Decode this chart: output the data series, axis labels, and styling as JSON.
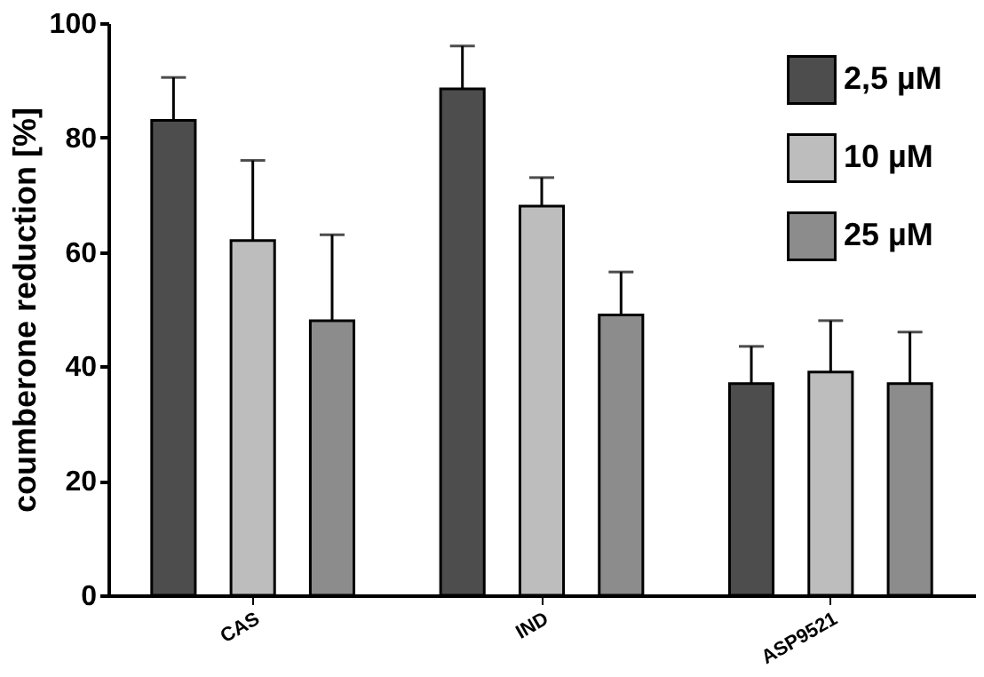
{
  "chart_data": {
    "type": "bar",
    "ylabel": "coumberone reduction [%]",
    "categories": [
      "CAS",
      "IND",
      "ASP9521"
    ],
    "series": [
      {
        "name": "2,5 µM",
        "color": "#4d4d4d",
        "values": [
          83,
          88.5,
          37
        ],
        "errors": [
          [
            83,
            90.5
          ],
          [
            88.5,
            96
          ],
          [
            37,
            43.5
          ]
        ]
      },
      {
        "name": "10 µM",
        "color": "#bdbdbd",
        "values": [
          62,
          68,
          39
        ],
        "errors": [
          [
            62,
            76
          ],
          [
            68,
            73
          ],
          [
            39,
            48
          ]
        ]
      },
      {
        "name": "25 µM",
        "color": "#8c8c8c",
        "values": [
          48,
          49,
          37
        ],
        "errors": [
          [
            48,
            63
          ],
          [
            49,
            56.5
          ],
          [
            37,
            46
          ]
        ]
      }
    ],
    "ylim": [
      0,
      100
    ],
    "yticks": [
      0,
      20,
      40,
      60,
      80,
      100
    ],
    "grid": false,
    "legend": "top right"
  }
}
